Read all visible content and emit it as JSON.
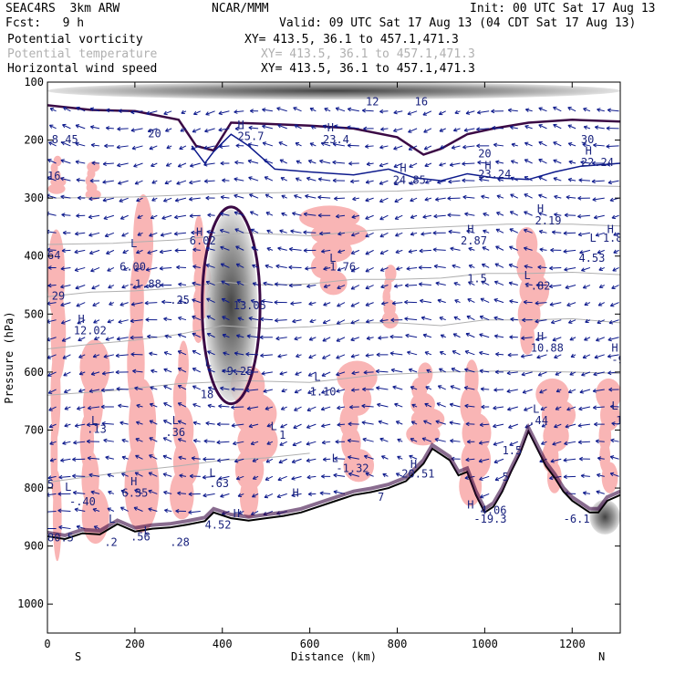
{
  "header": {
    "model": "SEAC4RS  3km ARW",
    "org": "NCAR/MMM",
    "init": "Init: 00 UTC Sat 17 Aug 13",
    "fcst": "Fcst:   9 h",
    "valid": "Valid: 09 UTC Sat 17 Aug 13 (04 CDT Sat 17 Aug 13)",
    "fields": [
      {
        "name": "Potential vorticity",
        "xy": "XY= 413.5, 36.1 to 457.1,471.3",
        "color": "#000000"
      },
      {
        "name": "Potential temperature",
        "xy": "XY= 413.5, 36.1 to 457.1,471.3",
        "color": "#b0b0b0"
      },
      {
        "name": "Horizontal wind speed",
        "xy": "XY= 413.5, 36.1 to 457.1,471.3",
        "color": "#000000"
      }
    ]
  },
  "chart_data": {
    "type": "cross-section",
    "xlabel": "Distance (km)",
    "ylabel": "Pressure (hPa)",
    "xlim": [
      0,
      1310
    ],
    "ylim": [
      1050,
      100
    ],
    "x_ticks": [
      0,
      200,
      400,
      600,
      800,
      1000,
      1200
    ],
    "y_ticks": [
      100,
      200,
      300,
      400,
      500,
      600,
      700,
      800,
      900,
      1000
    ],
    "left_end_label": "S",
    "right_end_label": "N",
    "colors": {
      "terrain": "#000000",
      "pv_contour": "#3b0a45",
      "wind_contour": "#0d1a8c",
      "theta_contour": "#b0b0b0",
      "pv_fill": "#f9b5b5",
      "wind_barbs": "#0d1a8c"
    },
    "terrain": [
      [
        0,
        883
      ],
      [
        40,
        888
      ],
      [
        80,
        878
      ],
      [
        120,
        880
      ],
      [
        160,
        862
      ],
      [
        200,
        875
      ],
      [
        240,
        870
      ],
      [
        280,
        868
      ],
      [
        320,
        863
      ],
      [
        360,
        857
      ],
      [
        380,
        842
      ],
      [
        420,
        852
      ],
      [
        460,
        856
      ],
      [
        500,
        852
      ],
      [
        540,
        848
      ],
      [
        580,
        842
      ],
      [
        620,
        832
      ],
      [
        660,
        822
      ],
      [
        700,
        812
      ],
      [
        740,
        807
      ],
      [
        780,
        800
      ],
      [
        820,
        788
      ],
      [
        860,
        758
      ],
      [
        880,
        732
      ],
      [
        900,
        742
      ],
      [
        920,
        752
      ],
      [
        940,
        778
      ],
      [
        960,
        772
      ],
      [
        980,
        812
      ],
      [
        1000,
        842
      ],
      [
        1020,
        832
      ],
      [
        1040,
        806
      ],
      [
        1060,
        772
      ],
      [
        1080,
        742
      ],
      [
        1100,
        702
      ],
      [
        1120,
        732
      ],
      [
        1140,
        762
      ],
      [
        1160,
        782
      ],
      [
        1180,
        806
      ],
      [
        1200,
        822
      ],
      [
        1220,
        832
      ],
      [
        1240,
        842
      ],
      [
        1260,
        842
      ],
      [
        1280,
        822
      ],
      [
        1310,
        812
      ]
    ],
    "tropopause_line": [
      [
        0,
        140
      ],
      [
        100,
        148
      ],
      [
        200,
        150
      ],
      [
        300,
        165
      ],
      [
        340,
        210
      ],
      [
        380,
        218
      ],
      [
        420,
        170
      ],
      [
        500,
        172
      ],
      [
        600,
        175
      ],
      [
        700,
        180
      ],
      [
        800,
        195
      ],
      [
        860,
        225
      ],
      [
        900,
        215
      ],
      [
        960,
        190
      ],
      [
        1020,
        180
      ],
      [
        1100,
        170
      ],
      [
        1200,
        165
      ],
      [
        1310,
        168
      ]
    ],
    "wind_contour_lower": [
      [
        330,
        210
      ],
      [
        360,
        240
      ],
      [
        380,
        220
      ],
      [
        420,
        190
      ],
      [
        460,
        210
      ],
      [
        520,
        250
      ],
      [
        600,
        255
      ],
      [
        700,
        260
      ],
      [
        780,
        250
      ],
      [
        840,
        265
      ],
      [
        900,
        270
      ],
      [
        960,
        258
      ],
      [
        1020,
        265
      ],
      [
        1100,
        268
      ],
      [
        1160,
        255
      ],
      [
        1220,
        245
      ],
      [
        1310,
        240
      ]
    ],
    "theta_lines": [
      [
        [
          0,
          560
        ],
        [
          100,
          552
        ],
        [
          200,
          545
        ],
        [
          300,
          535
        ],
        [
          400,
          520
        ],
        [
          500,
          525
        ],
        [
          600,
          522
        ],
        [
          700,
          515
        ],
        [
          800,
          515
        ],
        [
          900,
          520
        ],
        [
          1000,
          510
        ],
        [
          1100,
          510
        ],
        [
          1200,
          508
        ],
        [
          1310,
          515
        ]
      ],
      [
        [
          0,
          470
        ],
        [
          100,
          462
        ],
        [
          200,
          460
        ],
        [
          300,
          455
        ],
        [
          400,
          445
        ],
        [
          500,
          450
        ],
        [
          600,
          448
        ],
        [
          700,
          440
        ],
        [
          800,
          440
        ],
        [
          900,
          438
        ],
        [
          1000,
          430
        ],
        [
          1100,
          430
        ],
        [
          1200,
          428
        ],
        [
          1310,
          432
        ]
      ],
      [
        [
          0,
          380
        ],
        [
          150,
          378
        ],
        [
          300,
          372
        ],
        [
          450,
          360
        ],
        [
          600,
          365
        ],
        [
          750,
          355
        ],
        [
          900,
          350
        ],
        [
          1050,
          345
        ],
        [
          1200,
          345
        ],
        [
          1310,
          348
        ]
      ],
      [
        [
          0,
          300
        ],
        [
          200,
          298
        ],
        [
          400,
          292
        ],
        [
          600,
          290
        ],
        [
          800,
          288
        ],
        [
          1000,
          280
        ],
        [
          1200,
          278
        ],
        [
          1310,
          280
        ]
      ],
      [
        [
          0,
          640
        ],
        [
          150,
          632
        ],
        [
          300,
          620
        ],
        [
          450,
          615
        ],
        [
          600,
          618
        ],
        [
          750,
          605
        ],
        [
          900,
          600
        ],
        [
          1050,
          598
        ],
        [
          1200,
          600
        ],
        [
          1310,
          602
        ]
      ],
      [
        [
          0,
          790
        ],
        [
          100,
          780
        ],
        [
          200,
          770
        ],
        [
          300,
          762
        ],
        [
          400,
          752
        ],
        [
          500,
          748
        ],
        [
          600,
          740
        ]
      ]
    ],
    "pv_fill_regions": [
      {
        "x": [
          0,
          40
        ],
        "p": [
          380,
          900
        ]
      },
      {
        "x": [
          60,
          140
        ],
        "p": [
          560,
          880
        ]
      },
      {
        "x": [
          170,
          250
        ],
        "p": [
          320,
          850
        ]
      },
      {
        "x": [
          280,
          340
        ],
        "p": [
          560,
          840
        ]
      },
      {
        "x": [
          330,
          370
        ],
        "p": [
          340,
          540
        ]
      },
      {
        "x": [
          420,
          520
        ],
        "p": [
          600,
          840
        ]
      },
      {
        "x": [
          580,
          720
        ],
        "p": [
          320,
          460
        ]
      },
      {
        "x": [
          650,
          750
        ],
        "p": [
          590,
          780
        ]
      },
      {
        "x": [
          760,
          800
        ],
        "p": [
          420,
          520
        ]
      },
      {
        "x": [
          820,
          900
        ],
        "p": [
          590,
          720
        ]
      },
      {
        "x": [
          940,
          1010
        ],
        "p": [
          590,
          820
        ]
      },
      {
        "x": [
          1070,
          1140
        ],
        "p": [
          360,
          560
        ]
      },
      {
        "x": [
          1120,
          1200
        ],
        "p": [
          620,
          800
        ]
      },
      {
        "x": [
          1250,
          1310
        ],
        "p": [
          620,
          800
        ]
      },
      {
        "x": [
          80,
          120
        ],
        "p": [
          240,
          300
        ]
      },
      {
        "x": [
          0,
          40
        ],
        "p": [
          230,
          290
        ]
      }
    ],
    "pv_max_regions": [
      {
        "x": [
          360,
          480
        ],
        "p": [
          320,
          650
        ]
      },
      {
        "x": [
          0,
          1310
        ],
        "p": [
          100,
          130
        ]
      },
      {
        "x": [
          1240,
          1310
        ],
        "p": [
          820,
          880
        ]
      }
    ],
    "annotations": [
      {
        "text": "8.45",
        "x": 10,
        "p": 205
      },
      {
        "text": "16",
        "x": 0,
        "p": 268
      },
      {
        "text": "20",
        "x": 230,
        "p": 195
      },
      {
        "text": "H",
        "x": 435,
        "p": 180
      },
      {
        "text": "25.7",
        "x": 435,
        "p": 200
      },
      {
        "text": "H",
        "x": 640,
        "p": 185
      },
      {
        "text": "23.4",
        "x": 630,
        "p": 205
      },
      {
        "text": "12",
        "x": 728,
        "p": 140
      },
      {
        "text": "16",
        "x": 840,
        "p": 140
      },
      {
        "text": "20",
        "x": 985,
        "p": 230
      },
      {
        "text": "H",
        "x": 1000,
        "p": 250
      },
      {
        "text": "23.24",
        "x": 985,
        "p": 265
      },
      {
        "text": "H",
        "x": 806,
        "p": 255
      },
      {
        "text": "24.85",
        "x": 790,
        "p": 275
      },
      {
        "text": "30",
        "x": 1220,
        "p": 205
      },
      {
        "text": "H",
        "x": 1230,
        "p": 225
      },
      {
        "text": "22.24",
        "x": 1220,
        "p": 245
      },
      {
        "text": "H",
        "x": 1120,
        "p": 325
      },
      {
        "text": "2.19",
        "x": 1115,
        "p": 345
      },
      {
        "text": "H",
        "x": 960,
        "p": 360
      },
      {
        "text": "2.87",
        "x": 945,
        "p": 380
      },
      {
        "text": "L",
        "x": 1240,
        "p": 375
      },
      {
        "text": "H",
        "x": 1280,
        "p": 360
      },
      {
        "text": "1.87",
        "x": 1270,
        "p": 375
      },
      {
        "text": "4.53",
        "x": 1215,
        "p": 410
      },
      {
        "text": "H",
        "x": 340,
        "p": 365
      },
      {
        "text": "6.02",
        "x": 325,
        "p": 380
      },
      {
        "text": "L",
        "x": 190,
        "p": 385
      },
      {
        "text": "6.00",
        "x": 165,
        "p": 425
      },
      {
        "text": "-1.88",
        "x": 185,
        "p": 455
      },
      {
        "text": ".25",
        "x": 280,
        "p": 482
      },
      {
        "text": "13.05",
        "x": 425,
        "p": 492
      },
      {
        "text": "L",
        "x": 645,
        "p": 410
      },
      {
        "text": "-1.76",
        "x": 630,
        "p": 425
      },
      {
        "text": "1.5",
        "x": 960,
        "p": 445
      },
      {
        "text": "L",
        "x": 1090,
        "p": 440
      },
      {
        "text": "-.82",
        "x": 1090,
        "p": 458
      },
      {
        "text": "H",
        "x": 1120,
        "p": 545
      },
      {
        "text": "10.88",
        "x": 1105,
        "p": 565
      },
      {
        "text": "-9.6",
        "x": 1290,
        "p": 585
      },
      {
        "text": "H",
        "x": 1290,
        "p": 565
      },
      {
        "text": "H",
        "x": 70,
        "p": 515
      },
      {
        "text": "12.02",
        "x": 60,
        "p": 535
      },
      {
        "text": "64",
        "x": 0,
        "p": 405
      },
      {
        "text": "29",
        "x": 10,
        "p": 475
      },
      {
        "text": "L",
        "x": 360,
        "p": 590
      },
      {
        "text": "-9.25",
        "x": 395,
        "p": 605
      },
      {
        "text": "18",
        "x": 350,
        "p": 645
      },
      {
        "text": "L",
        "x": 610,
        "p": 615
      },
      {
        "text": "1.10",
        "x": 600,
        "p": 640
      },
      {
        "text": "L",
        "x": 100,
        "p": 690
      },
      {
        "text": ".13",
        "x": 90,
        "p": 705
      },
      {
        "text": "L",
        "x": 285,
        "p": 690
      },
      {
        "text": ".36",
        "x": 270,
        "p": 710
      },
      {
        "text": "L",
        "x": 510,
        "p": 700
      },
      {
        "text": "1",
        "x": 530,
        "p": 715
      },
      {
        "text": "L",
        "x": 1110,
        "p": 670
      },
      {
        "text": "L",
        "x": 1290,
        "p": 665
      },
      {
        "text": ".44",
        "x": 1100,
        "p": 690
      },
      {
        "text": "1.5",
        "x": 1300,
        "p": 690
      },
      {
        "text": "L",
        "x": 650,
        "p": 755
      },
      {
        "text": "-1.32",
        "x": 660,
        "p": 772
      },
      {
        "text": "H",
        "x": 830,
        "p": 765
      },
      {
        "text": "20.51",
        "x": 810,
        "p": 782
      },
      {
        "text": "1.5",
        "x": 1040,
        "p": 742
      },
      {
        "text": "5",
        "x": 1040,
        "p": 787
      },
      {
        "text": "L",
        "x": 370,
        "p": 780
      },
      {
        "text": ".63",
        "x": 370,
        "p": 798
      },
      {
        "text": "5",
        "x": 0,
        "p": 800
      },
      {
        "text": "L",
        "x": 40,
        "p": 805
      },
      {
        "text": "-.40",
        "x": 50,
        "p": 830
      },
      {
        "text": "H",
        "x": 190,
        "p": 795
      },
      {
        "text": "6.35",
        "x": 170,
        "p": 815
      },
      {
        "text": "H",
        "x": 560,
        "p": 815
      },
      {
        "text": "H",
        "x": 425,
        "p": 850
      },
      {
        "text": "4.52",
        "x": 360,
        "p": 870
      },
      {
        "text": "H",
        "x": 960,
        "p": 835
      },
      {
        "text": "4.06",
        "x": 990,
        "p": 845
      },
      {
        "text": "-19.3",
        "x": 975,
        "p": 860
      },
      {
        "text": "-6.1",
        "x": 1180,
        "p": 860
      },
      {
        "text": "L",
        "x": 140,
        "p": 860
      },
      {
        "text": ".56",
        "x": 190,
        "p": 890
      },
      {
        "text": ".2",
        "x": 130,
        "p": 900
      },
      {
        "text": ".28",
        "x": 280,
        "p": 900
      },
      {
        "text": "L",
        "x": 220,
        "p": 880
      },
      {
        "text": "7",
        "x": 755,
        "p": 822
      },
      {
        "text": "80.5",
        "x": 0,
        "p": 892
      }
    ]
  }
}
